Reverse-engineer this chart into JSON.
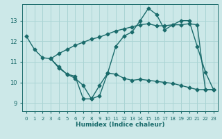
{
  "xlabel": "Humidex (Indice chaleur)",
  "bg_color": "#cce8e8",
  "grid_color": "#aad4d4",
  "line_color": "#1a6b6b",
  "xlim": [
    -0.5,
    23.5
  ],
  "ylim": [
    8.6,
    13.8
  ],
  "xticks": [
    0,
    1,
    2,
    3,
    4,
    5,
    6,
    7,
    8,
    9,
    10,
    11,
    12,
    13,
    14,
    15,
    16,
    17,
    18,
    19,
    20,
    21,
    22,
    23
  ],
  "yticks": [
    9,
    10,
    11,
    12,
    13
  ],
  "line1_x": [
    0,
    1,
    2,
    3,
    4,
    5,
    6,
    7,
    8,
    9,
    10,
    11,
    12,
    13,
    14,
    15,
    16,
    17,
    18,
    19,
    20,
    21,
    22,
    23
  ],
  "line1_y": [
    12.25,
    11.6,
    11.2,
    11.15,
    10.75,
    10.4,
    10.3,
    9.2,
    9.2,
    9.35,
    10.45,
    11.75,
    12.25,
    12.45,
    13.0,
    13.6,
    13.3,
    12.55,
    12.8,
    13.0,
    13.0,
    11.75,
    10.5,
    9.65
  ],
  "line2_x": [
    3,
    4,
    5,
    6,
    7,
    8,
    9,
    10,
    11,
    12,
    13,
    14,
    15,
    16,
    17,
    18,
    19,
    20,
    21,
    22,
    23
  ],
  "line2_y": [
    11.15,
    11.4,
    11.6,
    11.8,
    11.95,
    12.1,
    12.2,
    12.35,
    12.5,
    12.6,
    12.7,
    12.8,
    12.85,
    12.75,
    12.75,
    12.8,
    12.8,
    12.85,
    12.8,
    9.65,
    9.65
  ],
  "line3_x": [
    3,
    4,
    5,
    6,
    7,
    8,
    9,
    10,
    11,
    12,
    13,
    14,
    15,
    16,
    17,
    18,
    19,
    20,
    21,
    22,
    23
  ],
  "line3_y": [
    11.15,
    10.7,
    10.4,
    10.2,
    9.85,
    9.2,
    9.85,
    10.45,
    10.4,
    10.2,
    10.1,
    10.15,
    10.1,
    10.05,
    10.0,
    9.95,
    9.85,
    9.75,
    9.65,
    9.65,
    9.65
  ],
  "marker": "D",
  "markersize": 2.5,
  "linewidth": 1.0
}
